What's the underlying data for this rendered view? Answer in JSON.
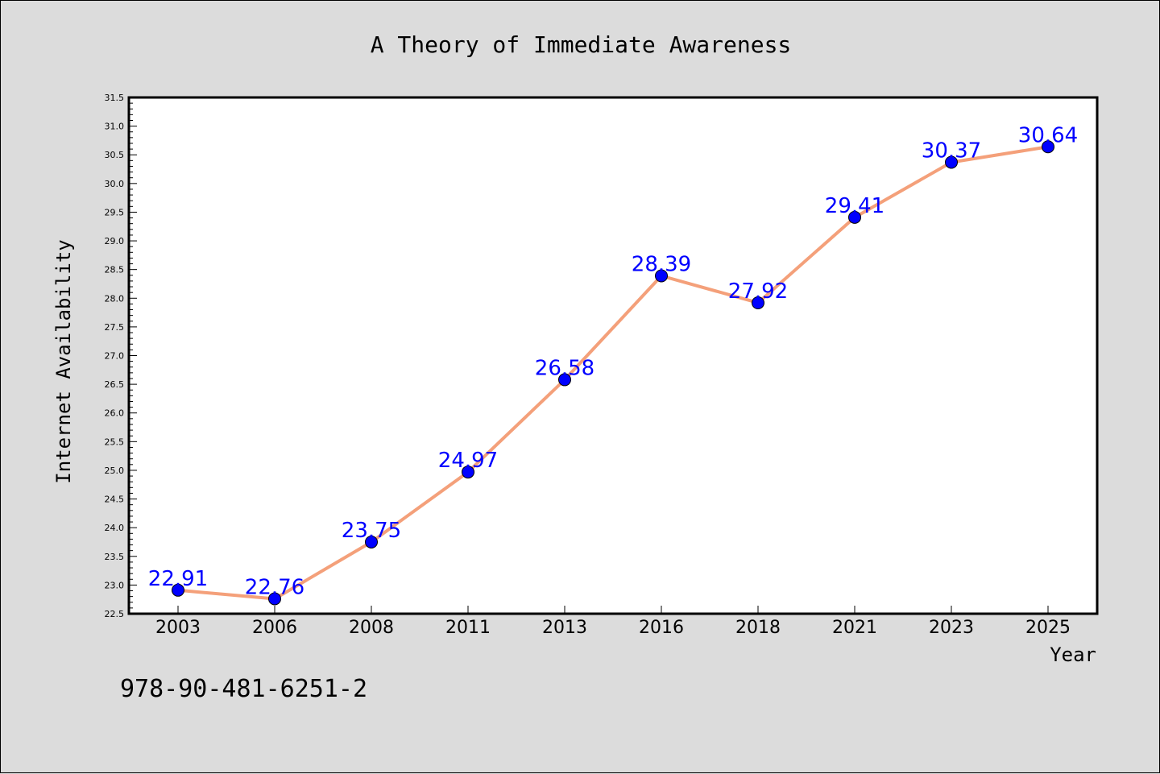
{
  "isbn_text": "978-90-481-6251-2",
  "chart_data": {
    "type": "line",
    "title": "A Theory of Immediate Awareness",
    "xlabel": "Year",
    "ylabel": "Internet Availability",
    "categories": [
      "2003",
      "2006",
      "2008",
      "2011",
      "2013",
      "2016",
      "2018",
      "2021",
      "2023",
      "2025"
    ],
    "series": [
      {
        "values": [
          22.91,
          22.76,
          23.75,
          24.97,
          26.58,
          28.39,
          27.92,
          29.41,
          30.37,
          30.64
        ],
        "data_labels": [
          "22.91",
          "22.76",
          "23.75",
          "24.97",
          "26.58",
          "28.39",
          "27.92",
          "29.41",
          "30.37",
          "30.64"
        ],
        "line_color": "#f4a07a",
        "marker_color": "#0000ff"
      }
    ],
    "ylim": [
      22.5,
      31.5
    ],
    "yticks": [
      22.5,
      23.0,
      23.5,
      24.0,
      24.5,
      25.0,
      25.5,
      26.0,
      26.5,
      27.0,
      27.5,
      28.0,
      28.5,
      29.0,
      29.5,
      30.0,
      30.5,
      31.0,
      31.5
    ],
    "ytick_labels": [
      "22.5",
      "23.0",
      "23.5",
      "24.0",
      "24.5",
      "25.0",
      "25.5",
      "26.0",
      "26.5",
      "27.0",
      "27.5",
      "28.0",
      "28.5",
      "29.0",
      "29.5",
      "30.0",
      "30.5",
      "31.0",
      "31.5"
    ],
    "grid": false,
    "legend": "none",
    "label_color": "#0000ff"
  }
}
